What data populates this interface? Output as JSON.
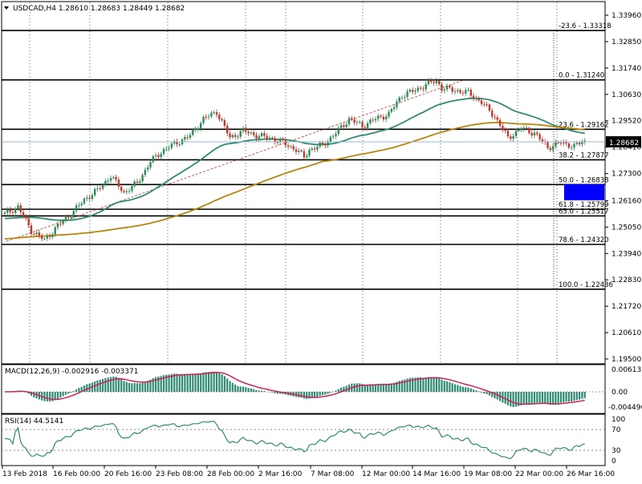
{
  "main_panel": {
    "symbol_header": "USDCAD,H4  1.28610 1.28683 1.28449 1.28682",
    "current_price_label": "1.28682",
    "price_ticks": [
      "1.33960",
      "1.32850",
      "1.31740",
      "1.30630",
      "1.29520",
      "1.28410",
      "1.27300",
      "1.26160",
      "1.25050",
      "1.23940",
      "1.22830",
      "1.21720",
      "1.20610",
      "1.19500"
    ],
    "fib_levels": [
      {
        "label": "-23.6 - 1.33318",
        "value": 1.33318
      },
      {
        "label": "0.0 - 1.31240",
        "value": 1.3124
      },
      {
        "label": "23.6 - 1.29162",
        "value": 1.29162
      },
      {
        "label": "38.2 - 1.27877",
        "value": 1.27877
      },
      {
        "label": "50.0 - 1.26838",
        "value": 1.26838
      },
      {
        "label": "61.8 - 1.25799",
        "value": 1.25799
      },
      {
        "label": "65.0 - 1.25517",
        "value": 1.25517
      },
      {
        "label": "78.6 - 1.24320",
        "value": 1.2432
      },
      {
        "label": "100.0 - 1.22436",
        "value": 1.22436
      }
    ]
  },
  "macd_panel": {
    "label": "MACD(12,26,9) -0.002916 -0.003371",
    "ticks": [
      "0.006131",
      "0.00",
      "-0.004496"
    ]
  },
  "rsi_panel": {
    "label": "RSI(14) 44.5141",
    "ticks": [
      "100",
      "70",
      "30",
      "0"
    ]
  },
  "time_axis": [
    "13 Feb 2018",
    "16 Feb 00:00",
    "20 Feb 16:00",
    "23 Feb 08:00",
    "28 Feb 00:00",
    "2 Mar 16:00",
    "7 Mar 08:00",
    "12 Mar 00:00",
    "14 Mar 16:00",
    "19 Mar 08:00",
    "22 Mar 00:00",
    "26 Mar 16:00"
  ],
  "colors": {
    "bull": "#2e8b57",
    "bear": "#c0392b",
    "ma_fast": "#2e8b74",
    "ma_slow": "#b8860b",
    "macd_hist": "#2e8b74",
    "macd_signal": "#cc2255",
    "rsi_line": "#2e8b74",
    "highlight_box": "#0000ff"
  },
  "chart_data": {
    "type": "candlestick",
    "price_range": [
      1.195,
      1.3396
    ],
    "anchors_x": [
      0,
      5,
      10,
      15,
      20,
      25,
      30,
      35,
      40,
      45,
      50,
      55,
      60,
      65,
      70,
      75,
      80,
      85,
      90,
      95,
      100,
      105,
      110,
      113,
      115,
      120,
      125,
      130,
      135,
      140,
      145,
      150,
      155,
      160,
      163,
      165,
      170,
      175,
      180,
      185,
      190,
      195,
      200,
      205,
      210,
      215,
      219
    ],
    "anchors_close": [
      1.256,
      1.259,
      1.249,
      1.245,
      1.251,
      1.256,
      1.262,
      1.266,
      1.272,
      1.265,
      1.269,
      1.278,
      1.283,
      1.286,
      1.289,
      1.296,
      1.299,
      1.288,
      1.291,
      1.289,
      1.288,
      1.286,
      1.283,
      1.28,
      1.283,
      1.285,
      1.29,
      1.296,
      1.293,
      1.296,
      1.298,
      1.306,
      1.308,
      1.311,
      1.312,
      1.309,
      1.308,
      1.307,
      1.303,
      1.297,
      1.288,
      1.292,
      1.29,
      1.284,
      1.286,
      1.2845,
      1.2868
    ],
    "ma_fast_label": "",
    "ma_slow_label": ""
  }
}
